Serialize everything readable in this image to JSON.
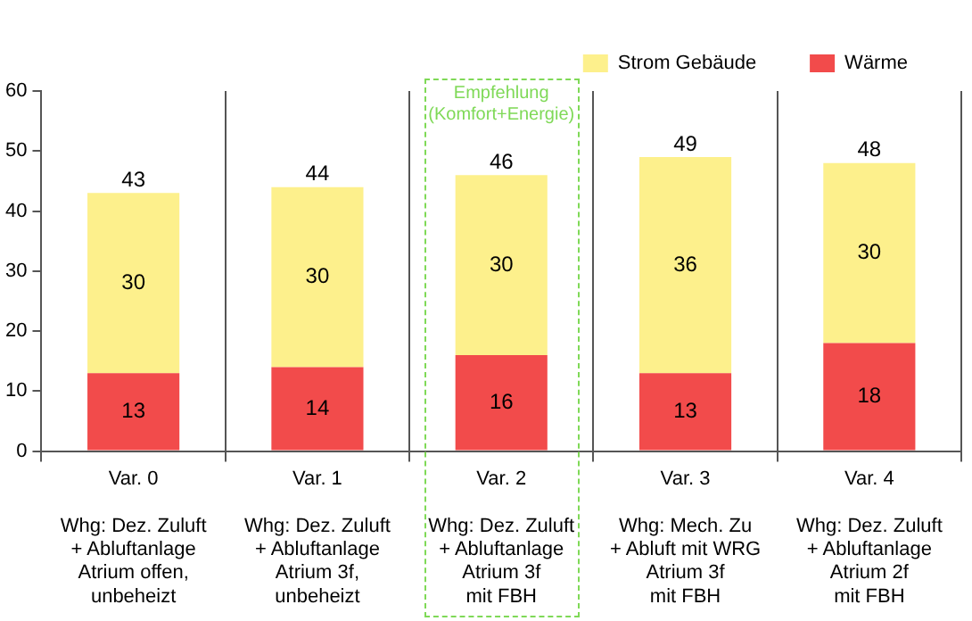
{
  "chart_data": {
    "type": "bar",
    "stacked": true,
    "categories": [
      "Var. 0\n\nWhg: Dez. Zuluft\n+ Abluftanlage\nAtrium offen,\nunbeheizt",
      "Var. 1\n\nWhg: Dez. Zuluft\n+ Abluftanlage\nAtrium 3f,\nunbeheizt",
      "Var. 2\n\nWhg: Dez. Zuluft\n+ Abluftanlage\nAtrium 3f\nmit FBH",
      "Var. 3\n\nWhg: Mech. Zu\n+ Abluft mit WRG\nAtrium 3f\nmit FBH",
      "Var. 4\n\nWhg: Dez. Zuluft\n+ Abluftanlage\nAtrium 2f\nmit FBH"
    ],
    "series": [
      {
        "name": "Wärme",
        "color": "#f24b4b",
        "values": [
          13,
          14,
          16,
          13,
          18
        ]
      },
      {
        "name": "Strom Gebäude",
        "color": "#fdf08c",
        "values": [
          30,
          30,
          30,
          36,
          30
        ]
      }
    ],
    "ylim": [
      0,
      60
    ],
    "yticks": [
      0,
      10,
      20,
      30,
      40,
      50,
      60
    ],
    "grid": "x",
    "legend": "top right",
    "data_labels": true,
    "totals": [
      "43",
      "44",
      "46",
      "49",
      "48"
    ],
    "annotations": [
      "Empfehlung\n(Komfort+Energie)"
    ]
  }
}
